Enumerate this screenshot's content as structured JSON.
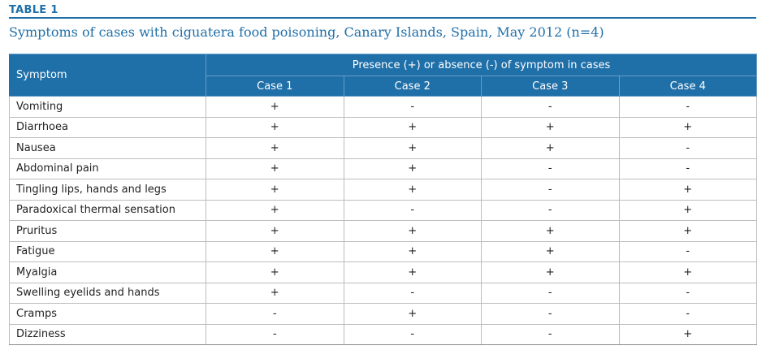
{
  "table_label": "TABLE 1",
  "caption": "Symptoms of cases with ciguatera food poisoning, Canary Islands, Spain, May 2012 (n=4)",
  "header": {
    "symptom": "Symptom",
    "presence": "Presence (+) or absence (-) of symptom in cases",
    "cases": [
      "Case 1",
      "Case 2",
      "Case 3",
      "Case 4"
    ]
  },
  "rows": [
    {
      "symptom": "Vomiting",
      "values": [
        "+",
        "-",
        "-",
        "-"
      ]
    },
    {
      "symptom": "Diarrhoea",
      "values": [
        "+",
        "+",
        "+",
        "+"
      ]
    },
    {
      "symptom": "Nausea",
      "values": [
        "+",
        "+",
        "+",
        "-"
      ]
    },
    {
      "symptom": "Abdominal pain",
      "values": [
        "+",
        "+",
        "-",
        "-"
      ]
    },
    {
      "symptom": "Tingling lips, hands and legs",
      "values": [
        "+",
        "+",
        "-",
        "+"
      ]
    },
    {
      "symptom": "Paradoxical thermal sensation",
      "values": [
        "+",
        "-",
        "-",
        "+"
      ]
    },
    {
      "symptom": "Pruritus",
      "values": [
        "+",
        "+",
        "+",
        "+"
      ]
    },
    {
      "symptom": "Fatigue",
      "values": [
        "+",
        "+",
        "+",
        "-"
      ]
    },
    {
      "symptom": "Myalgia",
      "values": [
        "+",
        "+",
        "+",
        "+"
      ]
    },
    {
      "symptom": "Swelling eyelids and hands",
      "values": [
        "+",
        "-",
        "-",
        "-"
      ]
    },
    {
      "symptom": "Cramps",
      "values": [
        "-",
        "+",
        "-",
        "-"
      ]
    },
    {
      "symptom": "Dizziness",
      "values": [
        "-",
        "-",
        "-",
        "+"
      ]
    }
  ],
  "colors": {
    "accent": "#1f6fa8",
    "header_text": "#ffffff",
    "grid": "#bdbdbd"
  }
}
